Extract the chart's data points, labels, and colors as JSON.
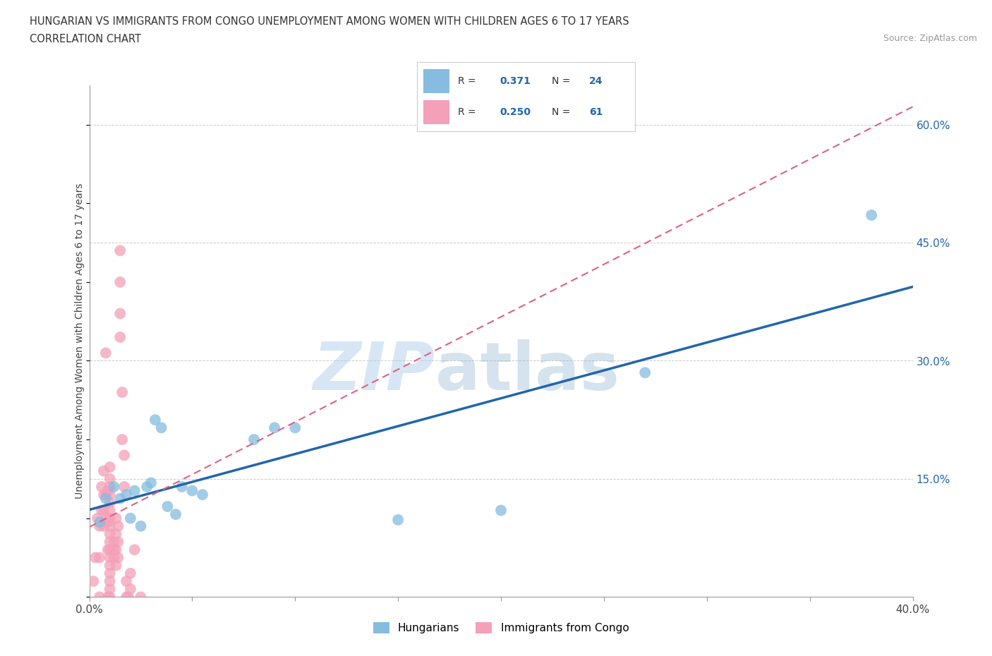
{
  "title": "HUNGARIAN VS IMMIGRANTS FROM CONGO UNEMPLOYMENT AMONG WOMEN WITH CHILDREN AGES 6 TO 17 YEARS",
  "subtitle": "CORRELATION CHART",
  "source": "Source: ZipAtlas.com",
  "ylabel": "Unemployment Among Women with Children Ages 6 to 17 years",
  "watermark_zip": "ZIP",
  "watermark_atlas": "atlas",
  "xlim": [
    0.0,
    0.4
  ],
  "ylim": [
    0.0,
    0.65
  ],
  "x_ticks": [
    0.0,
    0.05,
    0.1,
    0.15,
    0.2,
    0.25,
    0.3,
    0.35,
    0.4
  ],
  "y_ticks_right": [
    0.0,
    0.15,
    0.3,
    0.45,
    0.6
  ],
  "blue_color": "#85bce0",
  "pink_color": "#f4a0b8",
  "blue_line_color": "#2166ac",
  "pink_line_color": "#e06080",
  "grid_color": "#cccccc",
  "background_color": "#ffffff",
  "legend_R_blue": "0.371",
  "legend_N_blue": "24",
  "legend_R_pink": "0.250",
  "legend_N_pink": "61",
  "blue_scatter_x": [
    0.005,
    0.008,
    0.012,
    0.015,
    0.018,
    0.02,
    0.022,
    0.025,
    0.028,
    0.03,
    0.032,
    0.035,
    0.038,
    0.042,
    0.045,
    0.05,
    0.055,
    0.08,
    0.09,
    0.1,
    0.15,
    0.2,
    0.27,
    0.38
  ],
  "blue_scatter_y": [
    0.095,
    0.125,
    0.14,
    0.125,
    0.13,
    0.1,
    0.135,
    0.09,
    0.14,
    0.145,
    0.225,
    0.215,
    0.115,
    0.105,
    0.14,
    0.135,
    0.13,
    0.2,
    0.215,
    0.215,
    0.098,
    0.11,
    0.285,
    0.485
  ],
  "pink_scatter_x": [
    0.002,
    0.003,
    0.004,
    0.005,
    0.005,
    0.005,
    0.006,
    0.006,
    0.007,
    0.007,
    0.007,
    0.007,
    0.008,
    0.008,
    0.008,
    0.009,
    0.009,
    0.009,
    0.009,
    0.01,
    0.01,
    0.01,
    0.01,
    0.01,
    0.01,
    0.01,
    0.01,
    0.01,
    0.01,
    0.01,
    0.01,
    0.01,
    0.01,
    0.01,
    0.01,
    0.01,
    0.012,
    0.012,
    0.012,
    0.013,
    0.013,
    0.013,
    0.013,
    0.014,
    0.014,
    0.014,
    0.015,
    0.015,
    0.015,
    0.015,
    0.016,
    0.016,
    0.017,
    0.017,
    0.018,
    0.018,
    0.019,
    0.02,
    0.02,
    0.022,
    0.025
  ],
  "pink_scatter_y": [
    0.02,
    0.05,
    0.1,
    0.0,
    0.05,
    0.09,
    0.11,
    0.14,
    0.09,
    0.11,
    0.13,
    0.16,
    0.1,
    0.13,
    0.31,
    0.06,
    0.095,
    0.135,
    0.0,
    0.0,
    0.01,
    0.02,
    0.03,
    0.04,
    0.05,
    0.06,
    0.07,
    0.08,
    0.09,
    0.1,
    0.11,
    0.12,
    0.13,
    0.14,
    0.15,
    0.165,
    0.05,
    0.06,
    0.07,
    0.04,
    0.06,
    0.08,
    0.1,
    0.05,
    0.07,
    0.09,
    0.33,
    0.36,
    0.4,
    0.44,
    0.2,
    0.26,
    0.14,
    0.18,
    0.0,
    0.02,
    0.0,
    0.01,
    0.03,
    0.06,
    0.0
  ]
}
